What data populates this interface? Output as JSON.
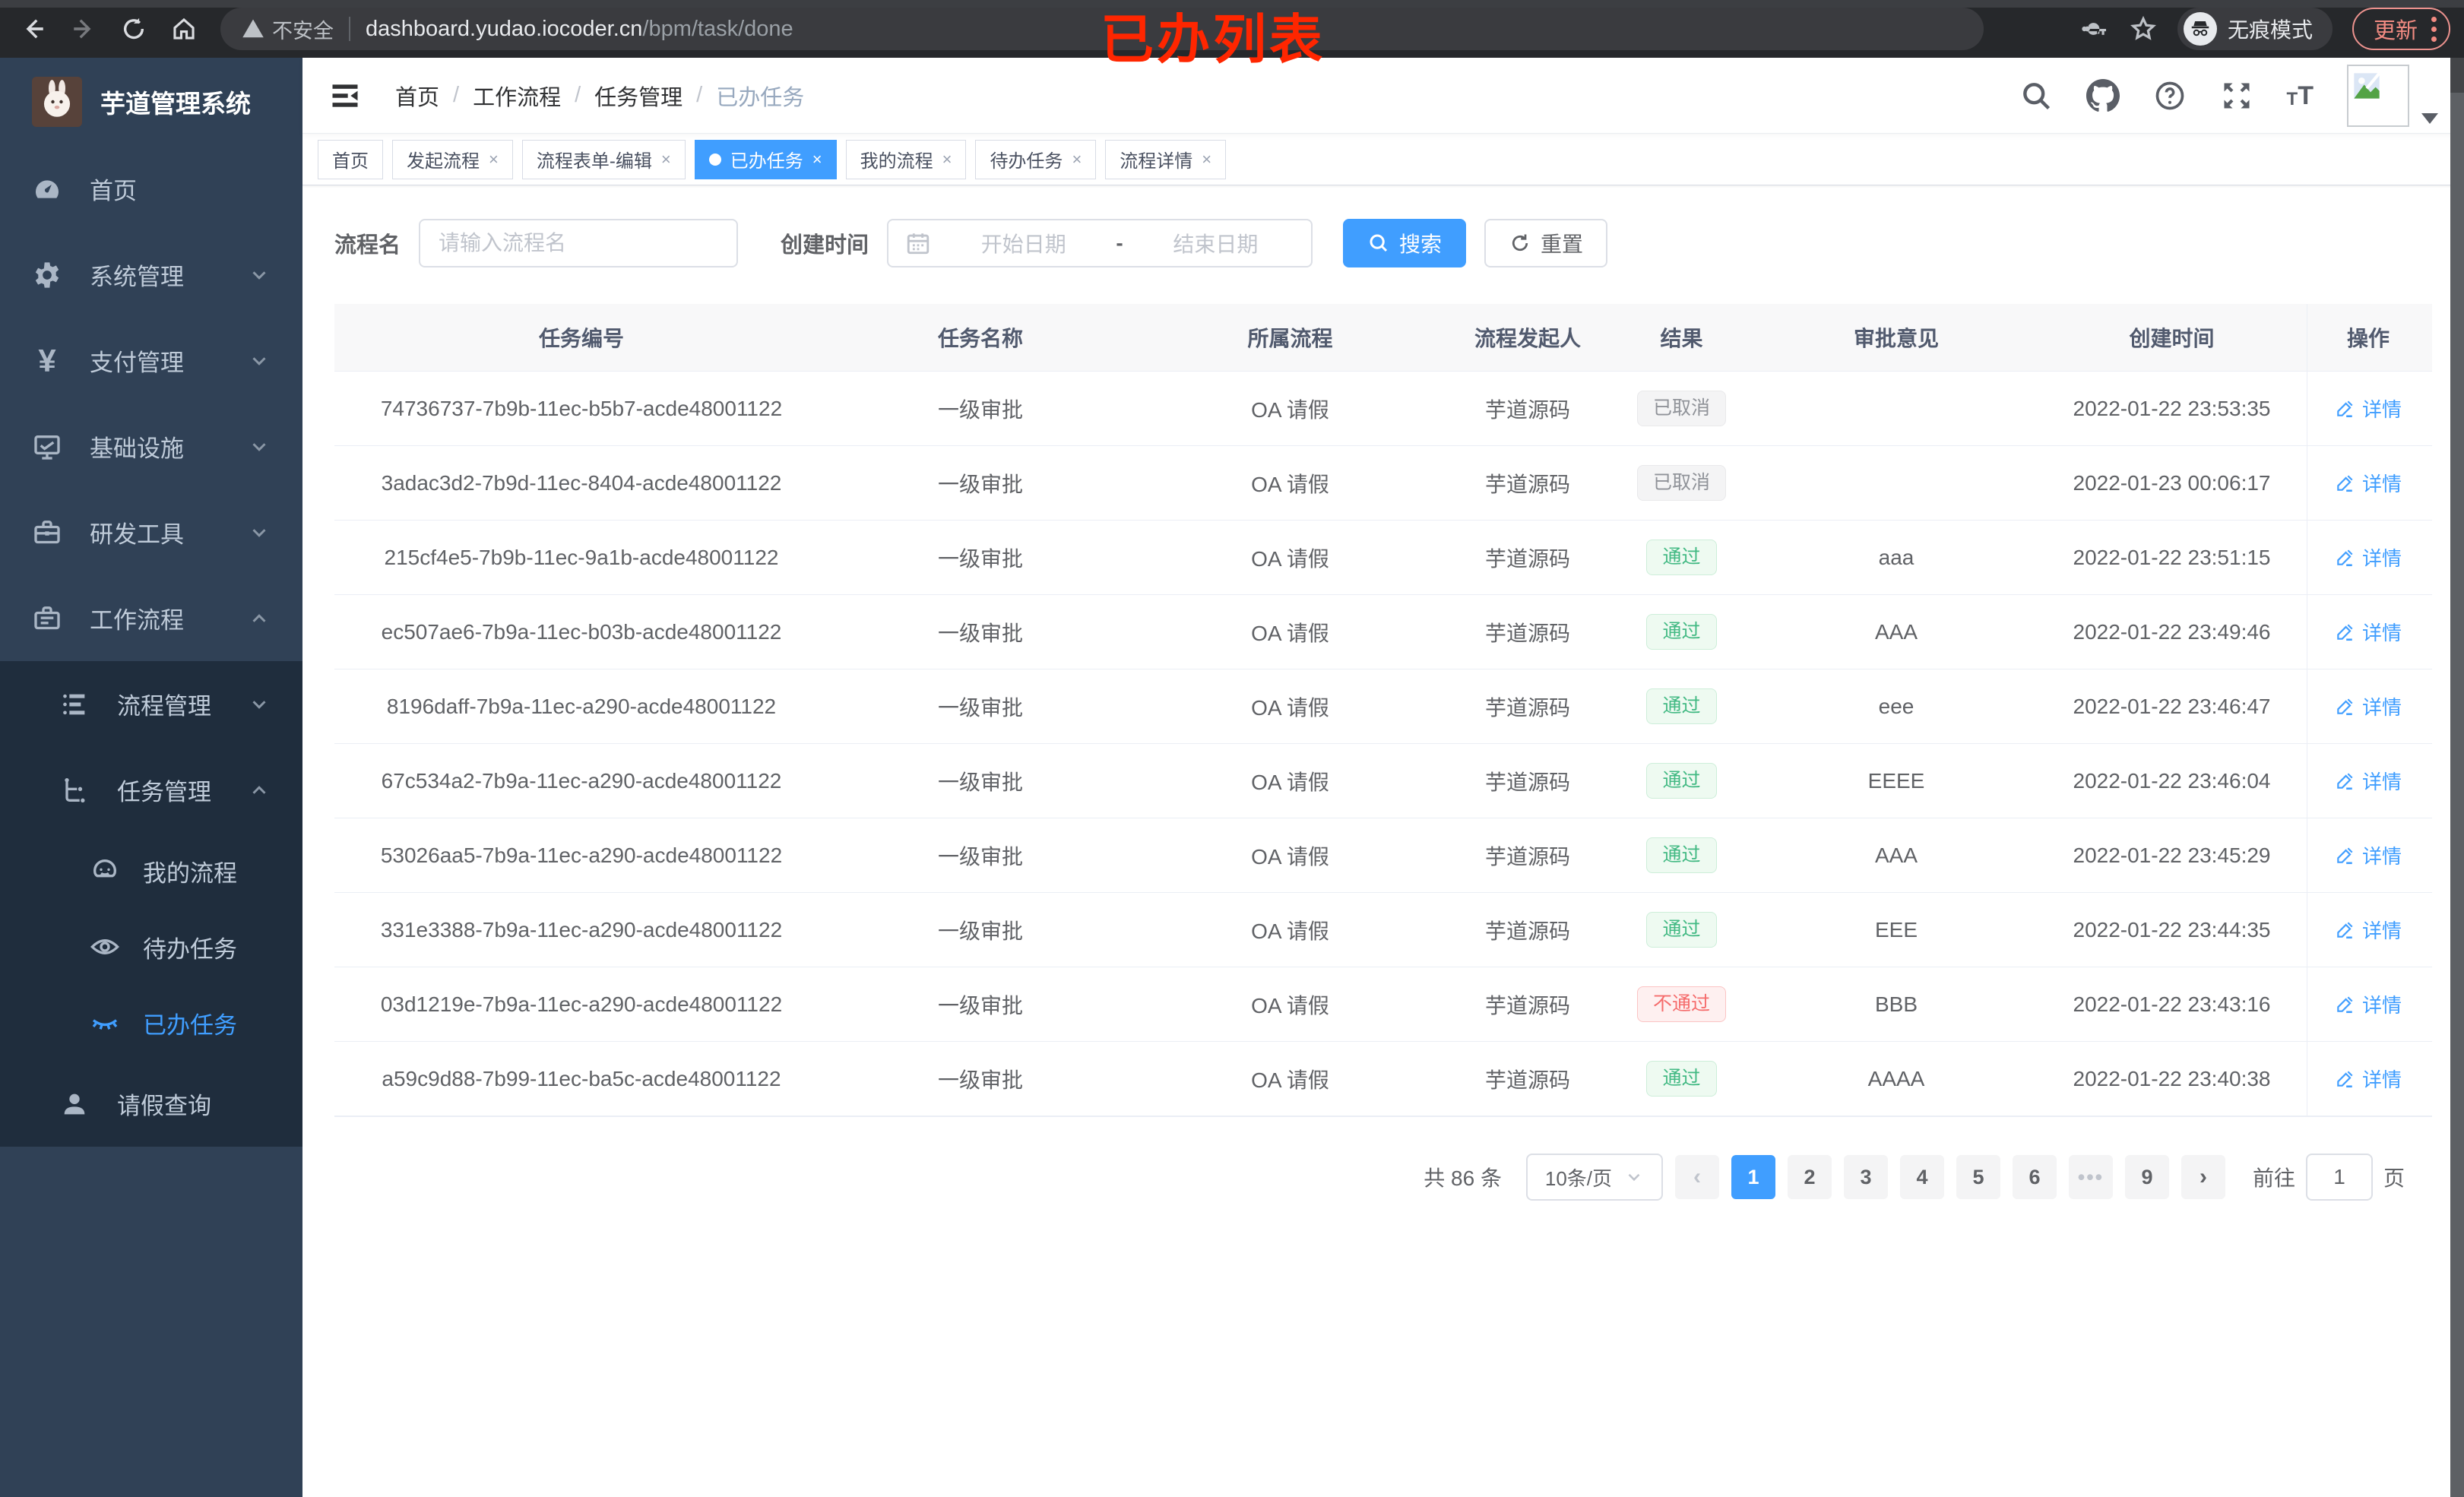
{
  "browser": {
    "security_warning": "不安全",
    "url_host": "dashboard.yudao.iocoder.cn",
    "url_path": "/bpm/task/done",
    "incognito_label": "无痕模式",
    "update_label": "更新"
  },
  "annotation": {
    "title": "已办列表",
    "color": "#ff2600"
  },
  "sidebar": {
    "app_title": "芋道管理系统",
    "items": [
      {
        "label": "首页"
      },
      {
        "label": "系统管理"
      },
      {
        "label": "支付管理"
      },
      {
        "label": "基础设施"
      },
      {
        "label": "研发工具"
      },
      {
        "label": "工作流程"
      },
      {
        "label": "流程管理"
      },
      {
        "label": "任务管理"
      },
      {
        "label": "我的流程"
      },
      {
        "label": "待办任务"
      },
      {
        "label": "已办任务"
      },
      {
        "label": "请假查询"
      }
    ],
    "currency_glyph": "¥"
  },
  "breadcrumb": {
    "items": [
      "首页",
      "工作流程",
      "任务管理",
      "已办任务"
    ],
    "separator": "/"
  },
  "tabs": [
    {
      "label": "首页"
    },
    {
      "label": "发起流程",
      "close": "×"
    },
    {
      "label": "流程表单-编辑",
      "close": "×"
    },
    {
      "label": "已办任务",
      "close": "×",
      "active": true
    },
    {
      "label": "我的流程",
      "close": "×"
    },
    {
      "label": "待办任务",
      "close": "×"
    },
    {
      "label": "流程详情",
      "close": "×"
    }
  ],
  "filters": {
    "name_label": "流程名",
    "name_placeholder": "请输入流程名",
    "time_label": "创建时间",
    "start_placeholder": "开始日期",
    "range_separator": "-",
    "end_placeholder": "结束日期",
    "search_label": "搜索",
    "reset_label": "重置"
  },
  "table": {
    "headers": [
      "任务编号",
      "任务名称",
      "所属流程",
      "流程发起人",
      "结果",
      "审批意见",
      "创建时间",
      "操作"
    ],
    "action_label": "详情",
    "rows": [
      {
        "id": "74736737-7b9b-11ec-b5b7-acde48001122",
        "name": "一级审批",
        "process": "OA 请假",
        "starter": "芋道源码",
        "result": "已取消",
        "result_type": "info",
        "comment": "",
        "time": "2022-01-22 23:53:35"
      },
      {
        "id": "3adac3d2-7b9d-11ec-8404-acde48001122",
        "name": "一级审批",
        "process": "OA 请假",
        "starter": "芋道源码",
        "result": "已取消",
        "result_type": "info",
        "comment": "",
        "time": "2022-01-23 00:06:17"
      },
      {
        "id": "215cf4e5-7b9b-11ec-9a1b-acde48001122",
        "name": "一级审批",
        "process": "OA 请假",
        "starter": "芋道源码",
        "result": "通过",
        "result_type": "success",
        "comment": "aaa",
        "time": "2022-01-22 23:51:15"
      },
      {
        "id": "ec507ae6-7b9a-11ec-b03b-acde48001122",
        "name": "一级审批",
        "process": "OA 请假",
        "starter": "芋道源码",
        "result": "通过",
        "result_type": "success",
        "comment": "AAA",
        "time": "2022-01-22 23:49:46"
      },
      {
        "id": "8196daff-7b9a-11ec-a290-acde48001122",
        "name": "一级审批",
        "process": "OA 请假",
        "starter": "芋道源码",
        "result": "通过",
        "result_type": "success",
        "comment": "eee",
        "time": "2022-01-22 23:46:47"
      },
      {
        "id": "67c534a2-7b9a-11ec-a290-acde48001122",
        "name": "一级审批",
        "process": "OA 请假",
        "starter": "芋道源码",
        "result": "通过",
        "result_type": "success",
        "comment": "EEEE",
        "time": "2022-01-22 23:46:04"
      },
      {
        "id": "53026aa5-7b9a-11ec-a290-acde48001122",
        "name": "一级审批",
        "process": "OA 请假",
        "starter": "芋道源码",
        "result": "通过",
        "result_type": "success",
        "comment": "AAA",
        "time": "2022-01-22 23:45:29"
      },
      {
        "id": "331e3388-7b9a-11ec-a290-acde48001122",
        "name": "一级审批",
        "process": "OA 请假",
        "starter": "芋道源码",
        "result": "通过",
        "result_type": "success",
        "comment": "EEE",
        "time": "2022-01-22 23:44:35"
      },
      {
        "id": "03d1219e-7b9a-11ec-a290-acde48001122",
        "name": "一级审批",
        "process": "OA 请假",
        "starter": "芋道源码",
        "result": "不通过",
        "result_type": "danger",
        "comment": "BBB",
        "time": "2022-01-22 23:43:16"
      },
      {
        "id": "a59c9d88-7b99-11ec-ba5c-acde48001122",
        "name": "一级审批",
        "process": "OA 请假",
        "starter": "芋道源码",
        "result": "通过",
        "result_type": "success",
        "comment": "AAAA",
        "time": "2022-01-22 23:40:38"
      }
    ]
  },
  "pagination": {
    "total_label": "共 86 条",
    "page_size_label": "10条/页",
    "prev_glyph": "‹",
    "next_glyph": "›",
    "pages": [
      "1",
      "2",
      "3",
      "4",
      "5",
      "6"
    ],
    "ellipsis": "•••",
    "last_page": "9",
    "goto_label": "前往",
    "goto_value": "1",
    "goto_unit": "页",
    "active_page": "1"
  },
  "colors": {
    "accent_blue": "#409eff",
    "success_green": "#42b983",
    "danger_red": "#f56c6c",
    "info_gray": "#909399",
    "sidebar_bg": "#304156",
    "submenu_bg": "#1f2d3d",
    "annotation_red": "#ff2600"
  }
}
